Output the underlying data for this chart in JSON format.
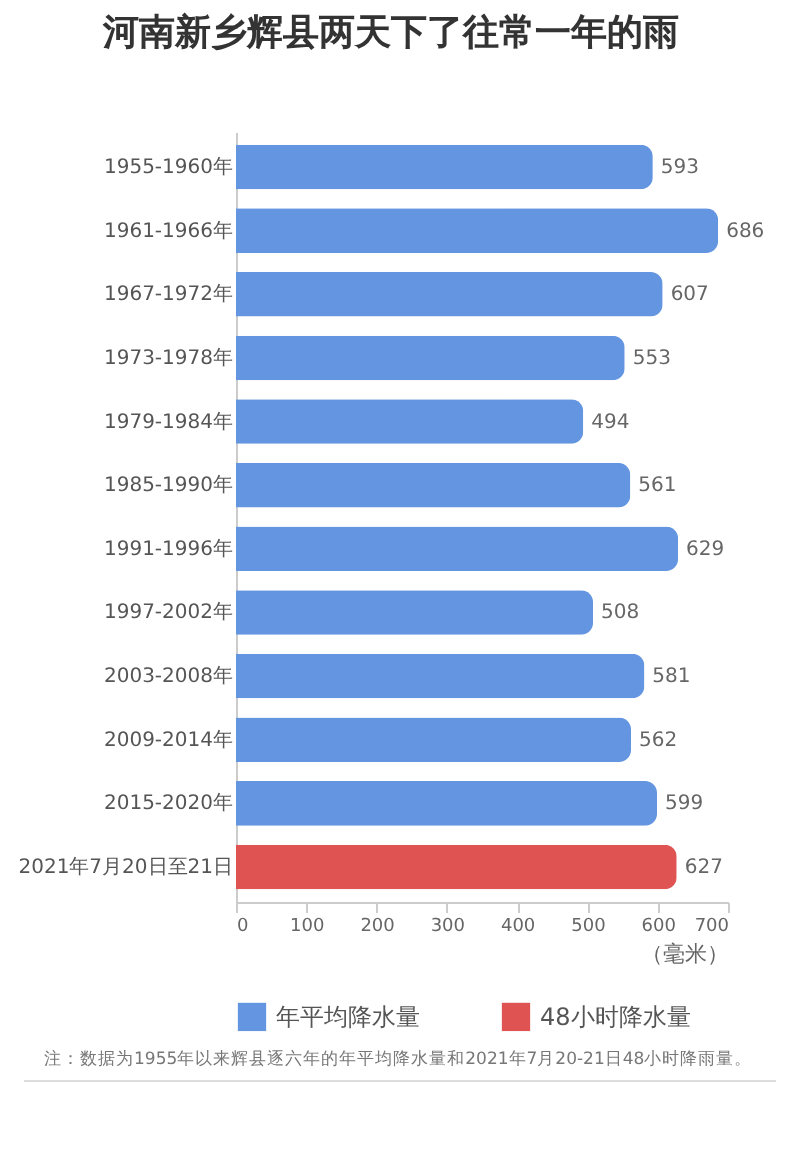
{
  "chart_data": {
    "type": "bar",
    "orientation": "horizontal",
    "title": "河南新乡辉县两天下了往常一年的雨",
    "categories": [
      "1955-1960年",
      "1961-1966年",
      "1967-1972年",
      "1973-1978年",
      "1979-1984年",
      "1985-1990年",
      "1991-1996年",
      "1997-2002年",
      "2003-2008年",
      "2009-2014年",
      "2015-2020年",
      "2021年7月20日至21日"
    ],
    "series": [
      {
        "name": "年平均降水量",
        "color": "#6495e1",
        "values": [
          593,
          686,
          607,
          553,
          494,
          561,
          629,
          508,
          581,
          562,
          599,
          null
        ]
      },
      {
        "name": "48小时降水量",
        "color": "#e05353",
        "values": [
          null,
          null,
          null,
          null,
          null,
          null,
          null,
          null,
          null,
          null,
          null,
          627
        ]
      }
    ],
    "xlim": [
      0,
      700
    ],
    "xticks": [
      0,
      100,
      200,
      300,
      400,
      500,
      600,
      700
    ],
    "xlabel": "（毫米）",
    "legend": "bottom",
    "data_labels": true,
    "grid": false,
    "annotations": [
      "注：数据为1955年以来辉县逐六年的年平均降水量和2021年7月20-21日48小时降雨量。"
    ]
  }
}
